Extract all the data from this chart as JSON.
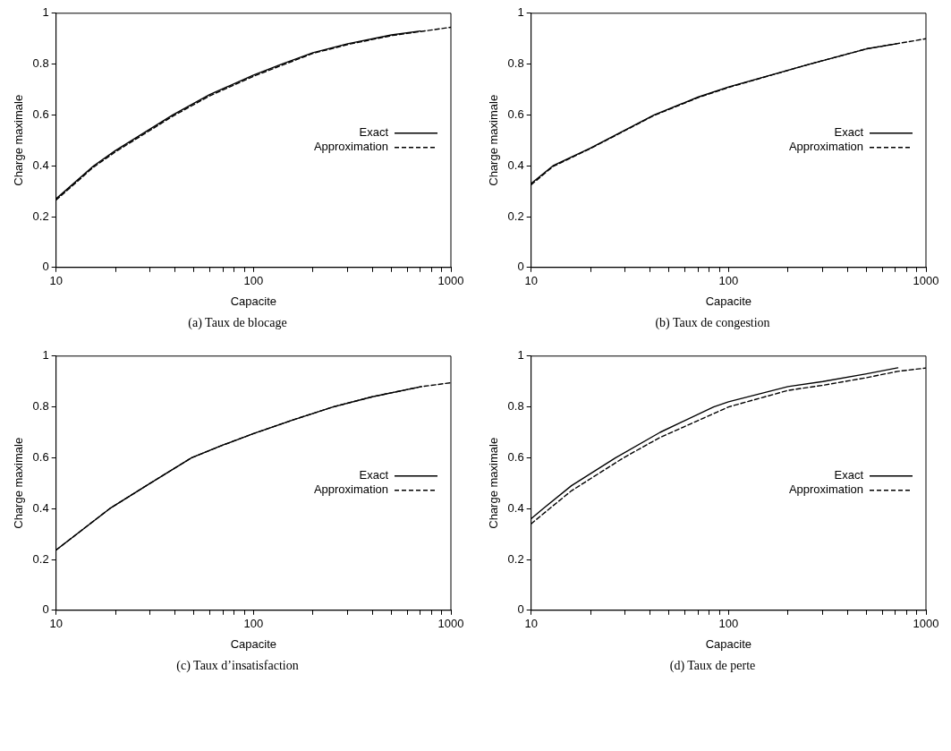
{
  "chart_data": [
    {
      "type": "line",
      "subtitle": "(a)  Taux de blocage",
      "xlabel": "Capacite",
      "ylabel": "Charge maximale",
      "log": "x",
      "xlim": [
        10,
        1000
      ],
      "ylim": [
        0,
        1
      ],
      "xticks": [
        10,
        {
          "value": 20,
          "label": null
        },
        {
          "value": 30,
          "label": null
        },
        {
          "value": 40,
          "label": null
        },
        {
          "value": 50,
          "label": null
        },
        {
          "value": 60,
          "label": null
        },
        {
          "value": 70,
          "label": null
        },
        {
          "value": 80,
          "label": null
        },
        {
          "value": 90,
          "label": null
        },
        100,
        {
          "value": 200,
          "label": null
        },
        {
          "value": 300,
          "label": null
        },
        {
          "value": 400,
          "label": null
        },
        {
          "value": 500,
          "label": null
        },
        {
          "value": 600,
          "label": null
        },
        {
          "value": 700,
          "label": null
        },
        {
          "value": 800,
          "label": null
        },
        {
          "value": 900,
          "label": null
        },
        1000
      ],
      "yticks": [
        0,
        0.2,
        0.4,
        0.6,
        0.8,
        1
      ],
      "legend": "right",
      "series": [
        {
          "name": "Exact",
          "color": "#000000",
          "line_style": "solid",
          "x": [
            10,
            15.5,
            20,
            39,
            60,
            100,
            139,
            200,
            300,
            500,
            700
          ],
          "values": [
            0.27,
            0.4,
            0.46,
            0.6,
            0.68,
            0.757,
            0.8,
            0.845,
            0.88,
            0.915,
            0.93
          ]
        },
        {
          "name": "Approximation",
          "color": "#000000",
          "line_style": "dashed",
          "x": [
            10,
            15.5,
            20,
            39,
            60,
            100,
            139,
            200,
            300,
            500,
            700,
            1000
          ],
          "values": [
            0.265,
            0.395,
            0.455,
            0.595,
            0.675,
            0.752,
            0.795,
            0.842,
            0.877,
            0.912,
            0.928,
            0.945
          ]
        }
      ]
    },
    {
      "type": "line",
      "subtitle": "(b)  Taux de congestion",
      "xlabel": "Capacite",
      "ylabel": "Charge maximale",
      "log": "x",
      "xlim": [
        10,
        1000
      ],
      "ylim": [
        0,
        1
      ],
      "xticks": [
        10,
        {
          "value": 20,
          "label": null
        },
        {
          "value": 30,
          "label": null
        },
        {
          "value": 40,
          "label": null
        },
        {
          "value": 50,
          "label": null
        },
        {
          "value": 60,
          "label": null
        },
        {
          "value": 70,
          "label": null
        },
        {
          "value": 80,
          "label": null
        },
        {
          "value": 90,
          "label": null
        },
        100,
        {
          "value": 200,
          "label": null
        },
        {
          "value": 300,
          "label": null
        },
        {
          "value": 400,
          "label": null
        },
        {
          "value": 500,
          "label": null
        },
        {
          "value": 600,
          "label": null
        },
        {
          "value": 700,
          "label": null
        },
        {
          "value": 800,
          "label": null
        },
        {
          "value": 900,
          "label": null
        },
        1000
      ],
      "yticks": [
        0,
        0.2,
        0.4,
        0.6,
        0.8,
        1
      ],
      "legend": "right",
      "series": [
        {
          "name": "Exact",
          "color": "#000000",
          "line_style": "solid",
          "x": [
            10,
            12.9,
            20,
            42,
            70,
            100,
            258,
            500,
            710
          ],
          "values": [
            0.33,
            0.4,
            0.47,
            0.6,
            0.67,
            0.71,
            0.8,
            0.86,
            0.88
          ]
        },
        {
          "name": "Approximation",
          "color": "#000000",
          "line_style": "dashed",
          "x": [
            10,
            12.9,
            20,
            42,
            70,
            100,
            258,
            500,
            710,
            1000
          ],
          "values": [
            0.325,
            0.397,
            0.468,
            0.598,
            0.668,
            0.708,
            0.8,
            0.86,
            0.88,
            0.9
          ]
        }
      ]
    },
    {
      "type": "line",
      "subtitle": "(c)  Taux d’insatisfaction",
      "xlabel": "Capacite",
      "ylabel": "Charge maximale",
      "log": "x",
      "xlim": [
        10,
        1000
      ],
      "ylim": [
        0,
        1
      ],
      "xticks": [
        10,
        {
          "value": 20,
          "label": null
        },
        {
          "value": 30,
          "label": null
        },
        {
          "value": 40,
          "label": null
        },
        {
          "value": 50,
          "label": null
        },
        {
          "value": 60,
          "label": null
        },
        {
          "value": 70,
          "label": null
        },
        {
          "value": 80,
          "label": null
        },
        {
          "value": 90,
          "label": null
        },
        100,
        {
          "value": 200,
          "label": null
        },
        {
          "value": 300,
          "label": null
        },
        {
          "value": 400,
          "label": null
        },
        {
          "value": 500,
          "label": null
        },
        {
          "value": 600,
          "label": null
        },
        {
          "value": 700,
          "label": null
        },
        {
          "value": 800,
          "label": null
        },
        {
          "value": 900,
          "label": null
        },
        1000
      ],
      "yticks": [
        0,
        0.2,
        0.4,
        0.6,
        0.8,
        1
      ],
      "legend": "right",
      "series": [
        {
          "name": "Exact",
          "color": "#000000",
          "line_style": "solid",
          "x": [
            10,
            18.7,
            30,
            48.6,
            70,
            100,
            160,
            253,
            400,
            710
          ],
          "values": [
            0.237,
            0.4,
            0.5,
            0.6,
            0.65,
            0.695,
            0.75,
            0.8,
            0.84,
            0.88
          ]
        },
        {
          "name": "Approximation",
          "color": "#000000",
          "line_style": "dashed",
          "x": [
            10,
            18.7,
            30,
            48.6,
            70,
            100,
            160,
            253,
            400,
            710,
            1000
          ],
          "values": [
            0.237,
            0.4,
            0.5,
            0.6,
            0.65,
            0.695,
            0.75,
            0.8,
            0.84,
            0.88,
            0.895
          ]
        }
      ]
    },
    {
      "type": "line",
      "subtitle": "(d)  Taux de perte",
      "xlabel": "Capacite",
      "ylabel": "Charge maximale",
      "log": "x",
      "xlim": [
        10,
        1000
      ],
      "ylim": [
        0,
        1
      ],
      "xticks": [
        10,
        {
          "value": 20,
          "label": null
        },
        {
          "value": 30,
          "label": null
        },
        {
          "value": 40,
          "label": null
        },
        {
          "value": 50,
          "label": null
        },
        {
          "value": 60,
          "label": null
        },
        {
          "value": 70,
          "label": null
        },
        {
          "value": 80,
          "label": null
        },
        {
          "value": 90,
          "label": null
        },
        100,
        {
          "value": 200,
          "label": null
        },
        {
          "value": 300,
          "label": null
        },
        {
          "value": 400,
          "label": null
        },
        {
          "value": 500,
          "label": null
        },
        {
          "value": 600,
          "label": null
        },
        {
          "value": 700,
          "label": null
        },
        {
          "value": 800,
          "label": null
        },
        {
          "value": 900,
          "label": null
        },
        1000
      ],
      "yticks": [
        0,
        0.2,
        0.4,
        0.6,
        0.8,
        1
      ],
      "legend": "right",
      "series": [
        {
          "name": "Exact",
          "color": "#000000",
          "line_style": "solid",
          "x": [
            10,
            11.5,
            16,
            26.8,
            45,
            84,
            100,
            200,
            300,
            500,
            720
          ],
          "values": [
            0.36,
            0.4,
            0.49,
            0.6,
            0.7,
            0.8,
            0.82,
            0.88,
            0.9,
            0.93,
            0.954
          ]
        },
        {
          "name": "Approximation",
          "color": "#000000",
          "line_style": "dashed",
          "x": [
            10,
            12.4,
            16,
            29.4,
            45,
            100,
            200,
            300,
            500,
            720,
            1000
          ],
          "values": [
            0.34,
            0.4,
            0.47,
            0.6,
            0.68,
            0.8,
            0.865,
            0.885,
            0.915,
            0.94,
            0.953
          ]
        }
      ]
    }
  ]
}
